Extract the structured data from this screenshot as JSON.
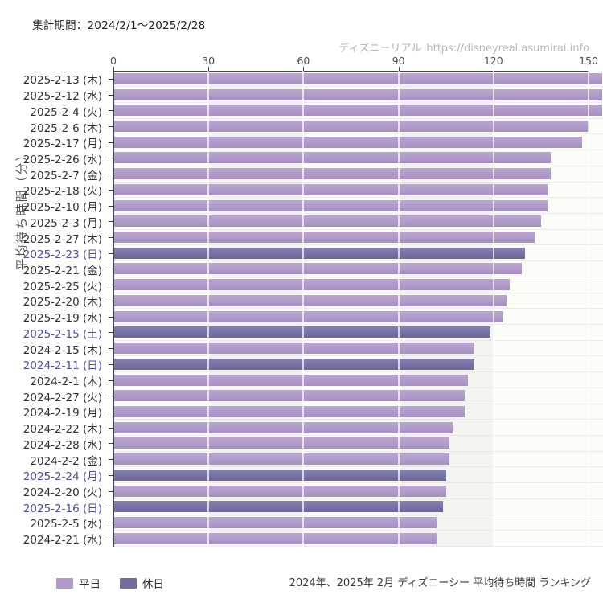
{
  "header": {
    "period_label": "集計期間：2024/2/1〜2025/2/28"
  },
  "watermark": {
    "site_name": "ディズニーリアル",
    "site_url": "https://disneyreal.asumirai.info"
  },
  "legend": {
    "items": [
      {
        "label": "平日",
        "type": "weekday",
        "color": "#b09aca"
      },
      {
        "label": "休日",
        "type": "holiday",
        "color": "#746ea0"
      }
    ]
  },
  "caption": "2024年、2025年 2月 ディズニーシー 平均待ち時間 ランキング",
  "colors": {
    "weekday_bar": "#b09aca",
    "holiday_bar": "#746ea0",
    "holiday_label_text": "#4d4da5",
    "weekday_label_text": "#303030",
    "axis": "#454545",
    "band_shade": "#f3f3f0",
    "band_light": "#fbfdf9"
  },
  "chart_data": {
    "type": "bar",
    "orientation": "horizontal",
    "title": "2024年、2025年 2月 ディズニーシー 平均待ち時間 ランキング",
    "xlabel": "",
    "ylabel": "平均待ち時間（分）",
    "x_ticks": [
      0,
      30,
      60,
      90,
      120,
      150
    ],
    "xlim": [
      0,
      155
    ],
    "grid": true,
    "legend_position": "bottom-left",
    "categories": [
      "2025-2-13 (木)",
      "2025-2-12 (水)",
      "2025-2-4 (火)",
      "2025-2-6 (木)",
      "2025-2-17 (月)",
      "2025-2-26 (水)",
      "2025-2-7 (金)",
      "2025-2-18 (火)",
      "2025-2-10 (月)",
      "2025-2-3 (月)",
      "2025-2-27 (木)",
      "2025-2-23 (日)",
      "2025-2-21 (金)",
      "2025-2-25 (火)",
      "2025-2-20 (木)",
      "2025-2-19 (水)",
      "2025-2-15 (土)",
      "2024-2-15 (木)",
      "2024-2-11 (日)",
      "2024-2-1 (木)",
      "2024-2-27 (火)",
      "2024-2-19 (月)",
      "2024-2-22 (木)",
      "2024-2-28 (水)",
      "2024-2-2 (金)",
      "2025-2-24 (月)",
      "2024-2-20 (火)",
      "2025-2-16 (日)",
      "2025-2-5 (水)",
      "2024-2-21 (水)"
    ],
    "values": [
      156,
      156,
      155,
      150,
      148,
      138,
      138,
      137,
      137,
      135,
      133,
      130,
      129,
      125,
      124,
      123,
      119,
      114,
      114,
      112,
      111,
      111,
      107,
      106,
      106,
      105,
      105,
      104,
      102,
      102
    ],
    "day_types": [
      "weekday",
      "weekday",
      "weekday",
      "weekday",
      "weekday",
      "weekday",
      "weekday",
      "weekday",
      "weekday",
      "weekday",
      "weekday",
      "holiday",
      "weekday",
      "weekday",
      "weekday",
      "weekday",
      "holiday",
      "weekday",
      "holiday",
      "weekday",
      "weekday",
      "weekday",
      "weekday",
      "weekday",
      "weekday",
      "holiday",
      "weekday",
      "holiday",
      "weekday",
      "weekday"
    ]
  }
}
